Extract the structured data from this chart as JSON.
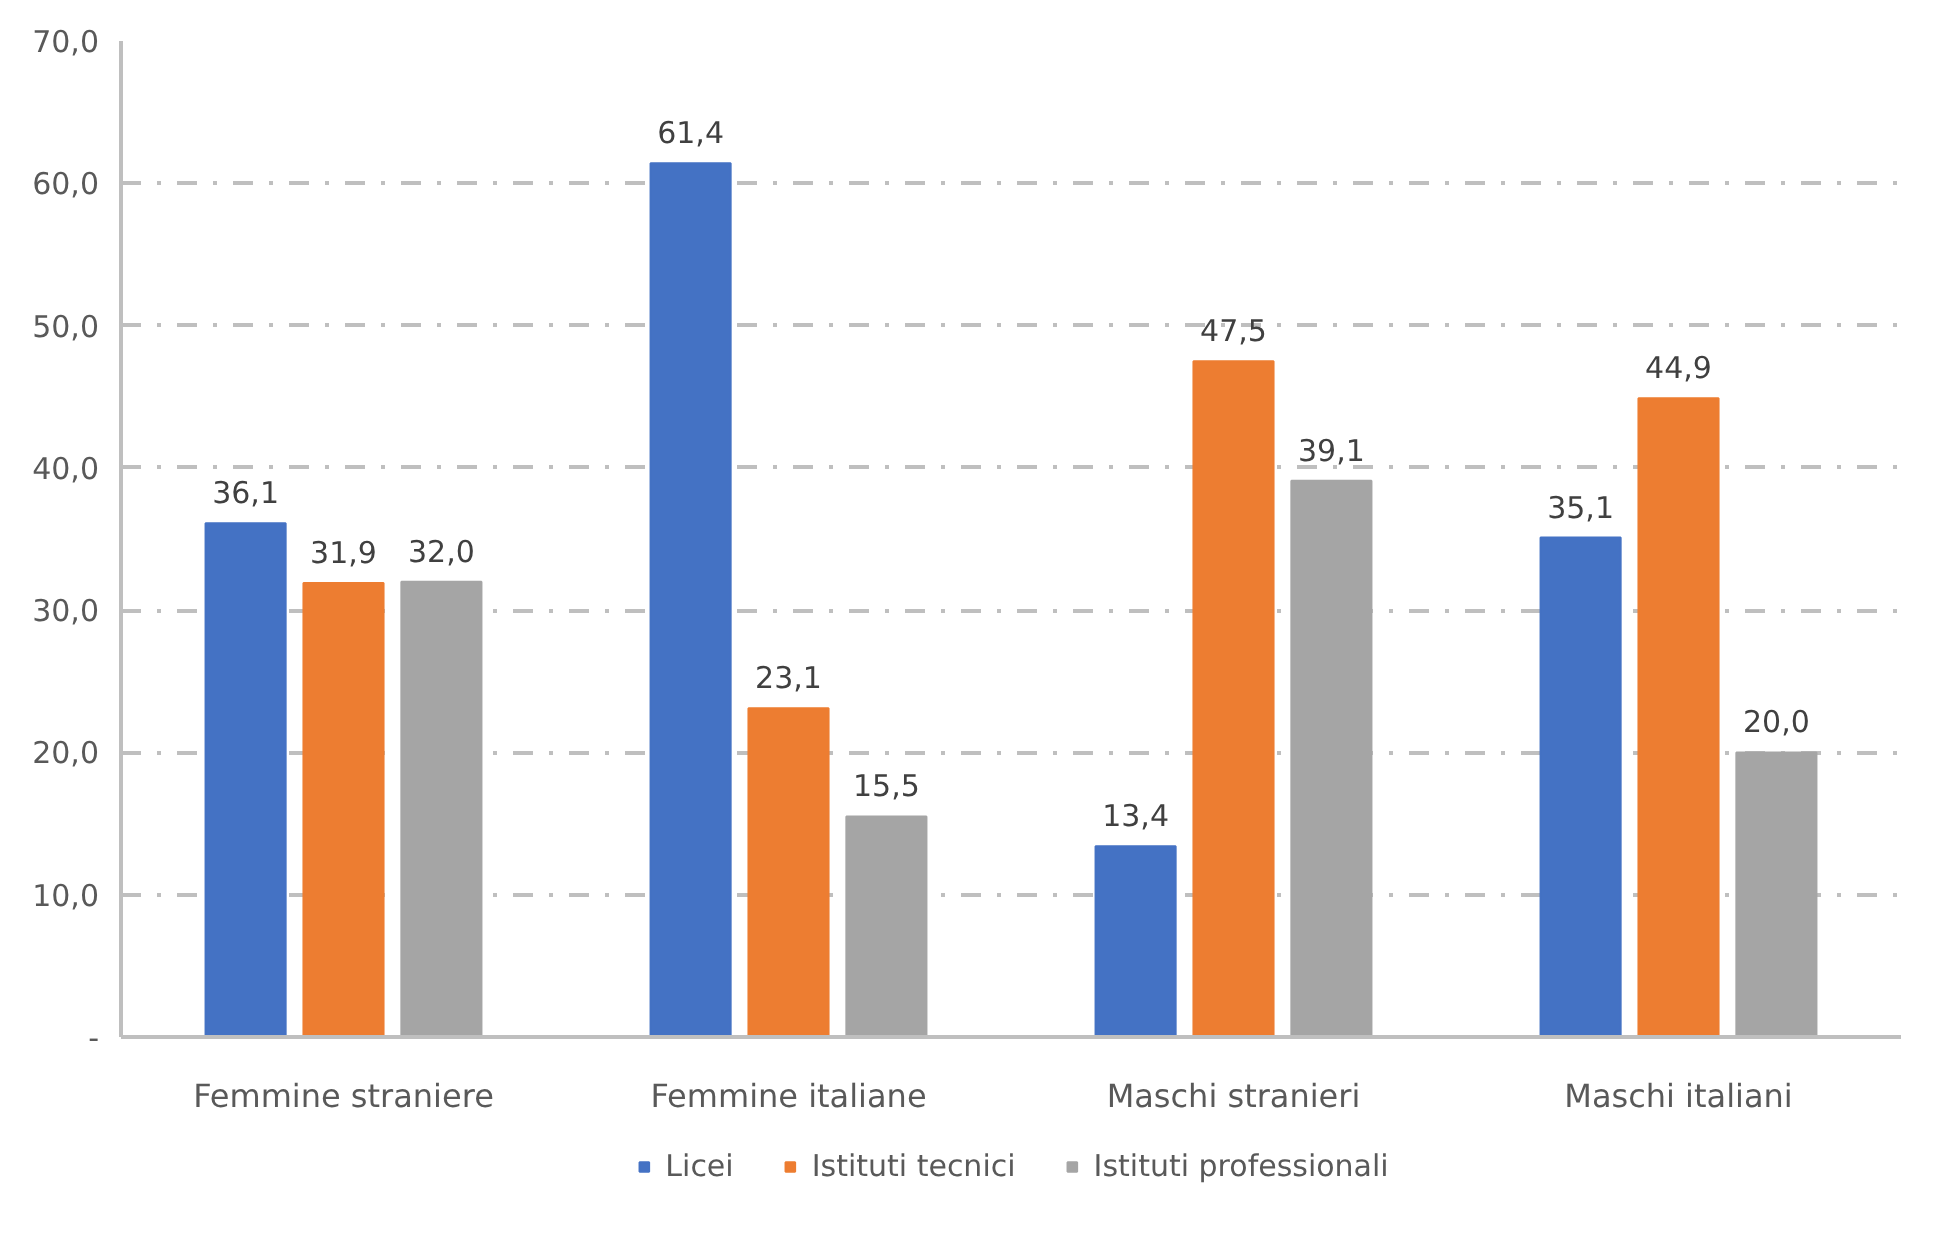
{
  "chart_data": {
    "type": "bar",
    "categories": [
      "Femmine straniere",
      "Femmine italiane",
      "Maschi stranieri",
      "Maschi italiani"
    ],
    "series": [
      {
        "name": "Licei",
        "color": "#4472c4",
        "values": [
          36.1,
          61.4,
          13.4,
          35.1
        ],
        "value_labels": [
          "36,1",
          "61,4",
          "13,4",
          "35,1"
        ]
      },
      {
        "name": "Istituti tecnici",
        "color": "#ed7d31",
        "values": [
          31.9,
          23.1,
          47.5,
          44.9
        ],
        "value_labels": [
          "31,9",
          "23,1",
          "47,5",
          "44,9"
        ]
      },
      {
        "name": "Istituti professionali",
        "color": "#a5a5a5",
        "values": [
          32.0,
          15.5,
          39.1,
          20.0
        ],
        "value_labels": [
          "32,0",
          "15,5",
          "39,1",
          "20,0"
        ]
      }
    ],
    "ylim": [
      0,
      70
    ],
    "yticks": [
      {
        "value": 0,
        "label": "-"
      },
      {
        "value": 10,
        "label": "10,0"
      },
      {
        "value": 20,
        "label": "20,0"
      },
      {
        "value": 30,
        "label": "30,0"
      },
      {
        "value": 40,
        "label": "40,0"
      },
      {
        "value": 50,
        "label": "50,0"
      },
      {
        "value": 60,
        "label": "60,0"
      },
      {
        "value": 70,
        "label": "70,0"
      }
    ],
    "grid": "y",
    "legend": "bottom"
  }
}
